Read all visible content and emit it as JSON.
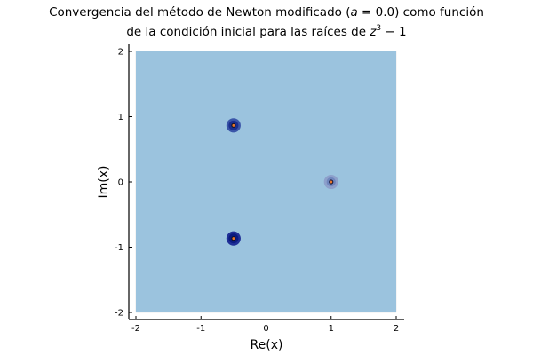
{
  "chart_data": {
    "type": "heatmap",
    "title_line1_a": "Convergencia del método de Newton modificado (",
    "title_line1_var": "a",
    "title_line1_b": " = 0.0) como función",
    "title_line2_a": "de la condición inicial para las raíces de ",
    "title_line2_z": "z",
    "title_line2_exp": "3",
    "title_line2_b": " − 1",
    "xlabel": "Re(x)",
    "ylabel": "Im(x)",
    "xlim": [
      -2,
      2
    ],
    "ylim": [
      -2,
      2
    ],
    "x_ticks": [
      -2,
      -1,
      0,
      1,
      2
    ],
    "y_ticks": [
      -2,
      -1,
      0,
      1,
      2
    ],
    "x_tick_labels": [
      "-2",
      "-1",
      "0",
      "1",
      "2"
    ],
    "y_tick_labels": [
      "-2",
      "-1",
      "0",
      "1",
      "2"
    ],
    "grid": true,
    "background_color": "#9bc3de",
    "roots": [
      {
        "re": 1.0,
        "im": 0.0,
        "rings": [
          {
            "radius": 0.11,
            "color": "#8da0cb"
          },
          {
            "radius": 0.07,
            "color": "#7086bd"
          },
          {
            "radius": 0.035,
            "color": "#1a1a3a"
          },
          {
            "radius": 0.02,
            "color": "#e8762c"
          }
        ]
      },
      {
        "re": -0.5,
        "im": 0.866,
        "rings": [
          {
            "radius": 0.11,
            "color": "#3a55a8"
          },
          {
            "radius": 0.075,
            "color": "#1b2f8f"
          },
          {
            "radius": 0.035,
            "color": "#141428"
          },
          {
            "radius": 0.02,
            "color": "#e8762c"
          }
        ]
      },
      {
        "re": -0.5,
        "im": -0.866,
        "rings": [
          {
            "radius": 0.11,
            "color": "#1f2f96"
          },
          {
            "radius": 0.075,
            "color": "#0b1a80"
          },
          {
            "radius": 0.035,
            "color": "#101024"
          },
          {
            "radius": 0.02,
            "color": "#e8762c"
          }
        ]
      }
    ]
  }
}
